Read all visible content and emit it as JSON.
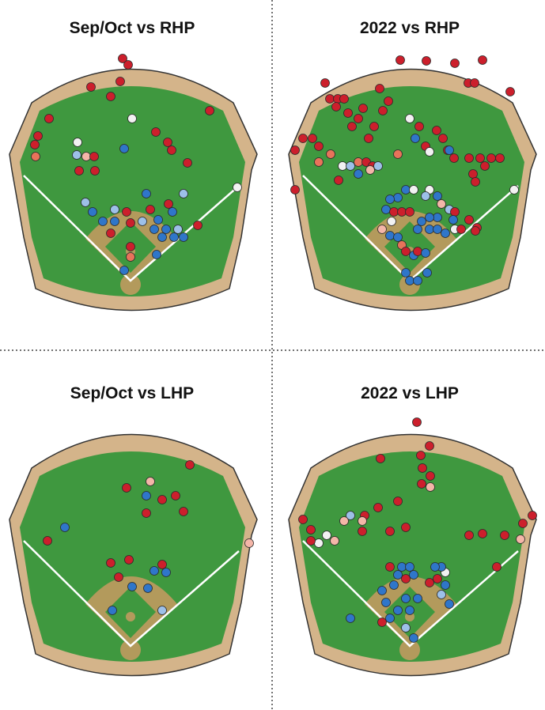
{
  "panels": [
    {
      "title": "Sep/Oct vs RHP"
    },
    {
      "title": "2022 vs RHP"
    },
    {
      "title": "Sep/Oct vs LHP"
    },
    {
      "title": "2022 vs LHP"
    }
  ]
}
